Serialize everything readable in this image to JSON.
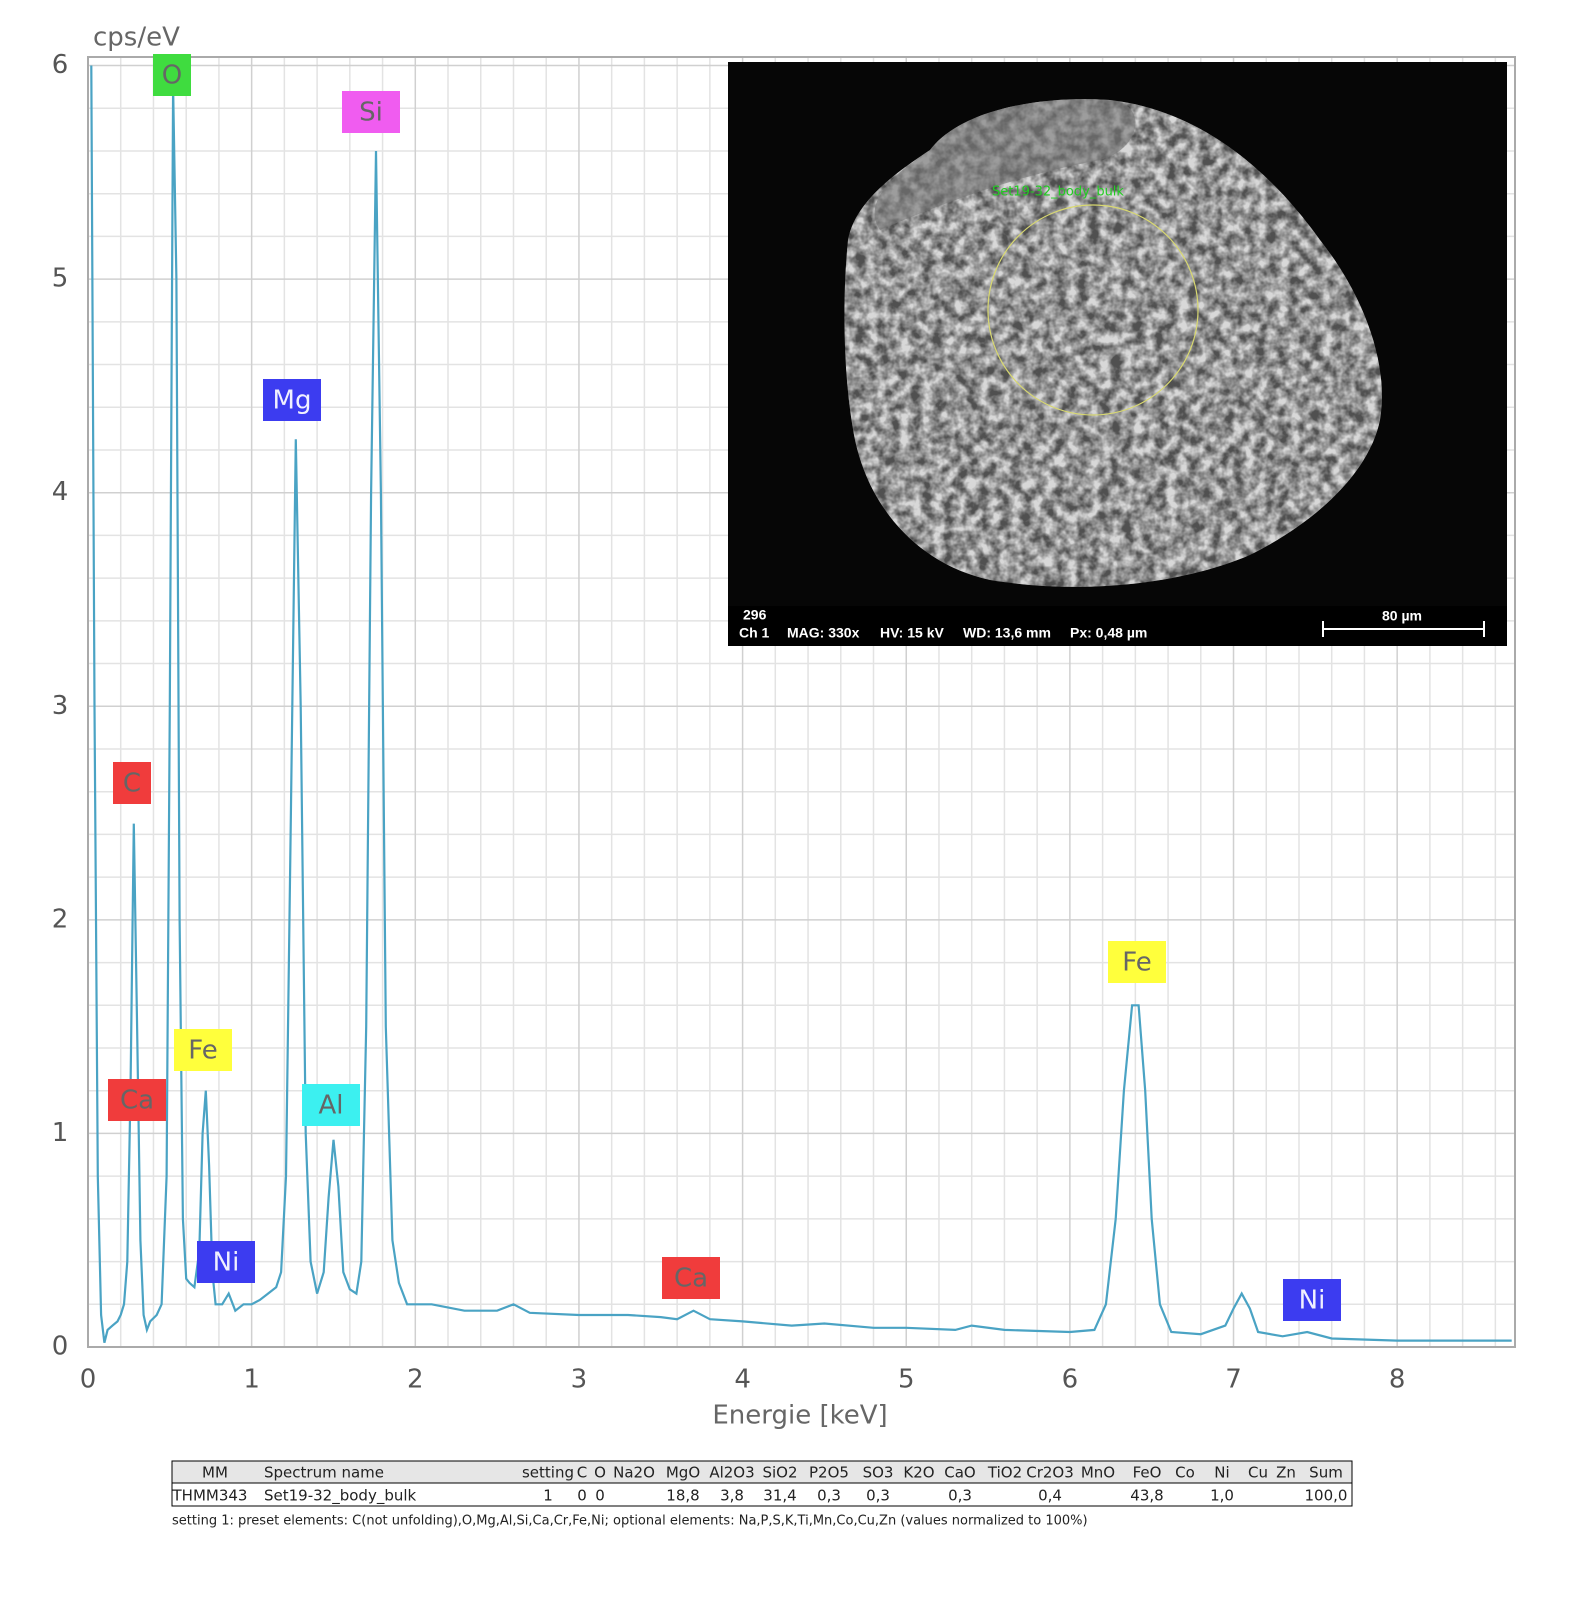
{
  "chart_data": {
    "type": "line",
    "y_label": "cps/eV",
    "x_label": "Energie [keV]",
    "xlim": [
      0,
      8.72
    ],
    "ylim": [
      0,
      6.04
    ],
    "xticks": [
      0,
      1,
      2,
      3,
      4,
      5,
      6,
      7,
      8
    ],
    "yticks": [
      0,
      1,
      2,
      3,
      4,
      5,
      6
    ],
    "xminorticks": [
      0.2,
      0.4,
      0.6,
      0.8,
      1.2,
      1.4,
      1.6,
      1.8,
      2.2,
      2.4,
      2.6,
      2.8,
      3.2,
      3.4,
      3.6,
      3.8,
      4.2,
      4.4,
      4.6,
      4.8,
      5.2,
      5.4,
      5.6,
      5.8,
      6.2,
      6.4,
      6.6,
      6.8,
      7.2,
      7.4,
      7.6,
      7.8,
      8.2,
      8.4,
      8.6
    ],
    "yminorticks": [
      0.2,
      0.4,
      0.6,
      0.8,
      1.2,
      1.4,
      1.6,
      1.8,
      2.2,
      2.4,
      2.6,
      2.8,
      3.2,
      3.4,
      3.6,
      3.8,
      4.2,
      4.4,
      4.6,
      4.8,
      5.2,
      5.4,
      5.6,
      5.8
    ],
    "grid": true,
    "color": "#4aa3c4",
    "x": [
      0.02,
      0.04,
      0.06,
      0.08,
      0.1,
      0.12,
      0.15,
      0.18,
      0.2,
      0.22,
      0.24,
      0.26,
      0.28,
      0.3,
      0.32,
      0.34,
      0.36,
      0.38,
      0.42,
      0.45,
      0.48,
      0.5,
      0.52,
      0.54,
      0.56,
      0.58,
      0.6,
      0.62,
      0.65,
      0.68,
      0.7,
      0.72,
      0.74,
      0.76,
      0.78,
      0.82,
      0.86,
      0.9,
      0.95,
      1.0,
      1.05,
      1.1,
      1.15,
      1.18,
      1.21,
      1.24,
      1.27,
      1.3,
      1.33,
      1.36,
      1.4,
      1.44,
      1.47,
      1.5,
      1.53,
      1.56,
      1.6,
      1.64,
      1.67,
      1.7,
      1.73,
      1.76,
      1.79,
      1.82,
      1.86,
      1.9,
      1.95,
      2.0,
      2.1,
      2.3,
      2.5,
      2.6,
      2.7,
      3.0,
      3.3,
      3.5,
      3.6,
      3.7,
      3.8,
      4.0,
      4.3,
      4.5,
      4.8,
      5.0,
      5.3,
      5.4,
      5.6,
      6.0,
      6.15,
      6.22,
      6.28,
      6.33,
      6.38,
      6.42,
      6.46,
      6.5,
      6.55,
      6.62,
      6.8,
      6.95,
      7.0,
      7.05,
      7.1,
      7.15,
      7.3,
      7.45,
      7.6,
      8.0,
      8.4,
      8.7
    ],
    "values": [
      6.0,
      3.0,
      0.8,
      0.15,
      0.02,
      0.08,
      0.1,
      0.12,
      0.15,
      0.2,
      0.4,
      1.2,
      2.45,
      1.5,
      0.5,
      0.15,
      0.08,
      0.12,
      0.15,
      0.2,
      0.8,
      3.0,
      5.9,
      5.0,
      2.0,
      0.6,
      0.32,
      0.3,
      0.28,
      0.45,
      1.0,
      1.2,
      0.85,
      0.35,
      0.2,
      0.2,
      0.25,
      0.17,
      0.2,
      0.2,
      0.22,
      0.25,
      0.28,
      0.35,
      0.8,
      2.5,
      4.25,
      3.0,
      1.0,
      0.4,
      0.25,
      0.35,
      0.7,
      0.97,
      0.75,
      0.35,
      0.27,
      0.25,
      0.4,
      1.5,
      4.0,
      5.6,
      4.0,
      1.5,
      0.5,
      0.3,
      0.2,
      0.2,
      0.2,
      0.17,
      0.17,
      0.2,
      0.16,
      0.15,
      0.15,
      0.14,
      0.13,
      0.17,
      0.13,
      0.12,
      0.1,
      0.11,
      0.09,
      0.09,
      0.08,
      0.1,
      0.08,
      0.07,
      0.08,
      0.2,
      0.6,
      1.2,
      1.6,
      1.6,
      1.2,
      0.6,
      0.2,
      0.07,
      0.06,
      0.1,
      0.18,
      0.25,
      0.18,
      0.07,
      0.05,
      0.07,
      0.04,
      0.03,
      0.03,
      0.03
    ],
    "annotations": [
      {
        "label": "O",
        "color": "#3fdc3f"
      },
      {
        "label": "Si",
        "color": "#f05cf0"
      },
      {
        "label": "Mg",
        "color": "#3c3cf0"
      },
      {
        "label": "C",
        "color": "#f03c3c"
      },
      {
        "label": "Fe",
        "color": "#ffff3c"
      },
      {
        "label": "Ca",
        "color": "#f03c3c"
      },
      {
        "label": "Al",
        "color": "#3cf0f0"
      },
      {
        "label": "Ni",
        "color": "#3c3cf0"
      },
      {
        "label": "Ca",
        "color": "#f03c3c"
      },
      {
        "label": "Fe",
        "color": "#ffff3c"
      },
      {
        "label": "Ni",
        "color": "#3c3cf0"
      }
    ]
  },
  "inset": {
    "spot_label": "Set19-32_body_bulk",
    "number": "296",
    "channel": "Ch 1",
    "mag": "MAG: 330x",
    "hv": "HV: 15 kV",
    "wd": "WD: 13,6 mm",
    "px": "Px: 0,48 µm",
    "scale": "80 µm"
  },
  "table": {
    "header": [
      "MM",
      "Spectrum name",
      "setting",
      "C",
      "O",
      "Na2O",
      "MgO",
      "Al2O3",
      "SiO2",
      "P2O5",
      "SO3",
      "K2O",
      "CaO",
      "TiO2",
      "Cr2O3",
      "MnO",
      "FeO",
      "Co",
      "Ni",
      "Cu",
      "Zn",
      "Sum"
    ],
    "rows": [
      [
        "THMM343",
        "Set19-32_body_bulk",
        "1",
        "0",
        "0",
        null,
        "18,8",
        "3,8",
        "31,4",
        "0,3",
        "0,3",
        null,
        "0,3",
        null,
        "0,4",
        null,
        "43,8",
        null,
        "1,0",
        null,
        null,
        "100,0"
      ]
    ],
    "note": "setting 1: preset elements: C(not unfolding),O,Mg,Al,Si,Ca,Cr,Fe,Ni; optional elements: Na,P,S,K,Ti,Mn,Co,Cu,Zn (values normalized to 100%)"
  }
}
